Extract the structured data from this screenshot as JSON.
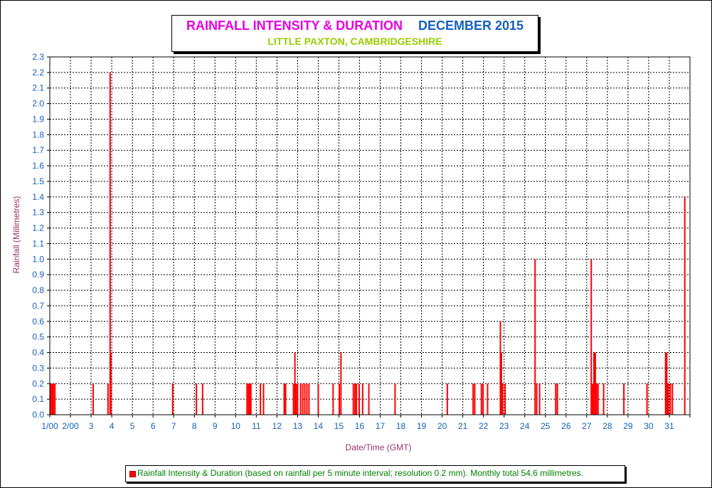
{
  "title": {
    "main": "RAINFALL INTENSITY & DURATION",
    "date": "DECEMBER 2015",
    "subtitle": "LITTLE PAXTON, CAMBRIDGESHIRE"
  },
  "legend": {
    "text": "Rainfall Intensity & Duration (based on rainfall per 5 minute interval; resolution 0.2 mm). Monthly total 54.6 millimetres."
  },
  "colors": {
    "bar": "#ff0000",
    "title_main": "#e600e6",
    "title_date": "#1560bd",
    "subtitle": "#99cc00",
    "axis_labels": "#993366",
    "tick_labels": "#1560bd",
    "legend_text": "#008000"
  },
  "chart_data": {
    "type": "bar",
    "title": "RAINFALL INTENSITY & DURATION",
    "subtitle": "LITTLE PAXTON, CAMBRIDGESHIRE",
    "xlabel": "Date/Time (GMT)",
    "ylabel": "Rainfall (Millimetres)",
    "xlim": [
      1,
      32
    ],
    "ylim": [
      0,
      2.3
    ],
    "grid": true,
    "legend_position": "bottom",
    "x_ticks": [
      1,
      2,
      3,
      4,
      5,
      6,
      7,
      8,
      9,
      10,
      11,
      12,
      13,
      14,
      15,
      16,
      17,
      18,
      19,
      20,
      21,
      22,
      23,
      24,
      25,
      26,
      27,
      28,
      29,
      30,
      31,
      32
    ],
    "x_tick_labels": [
      "1/00",
      "2/00",
      "3",
      "4",
      "5",
      "6",
      "7",
      "8",
      "9",
      "10",
      "11",
      "12",
      "13",
      "14",
      "15",
      "16",
      "17",
      "18",
      "19",
      "20",
      "21",
      "22",
      "23",
      "24",
      "25",
      "26",
      "27",
      "28",
      "29",
      "30",
      "31",
      ""
    ],
    "y_ticks": [
      0.0,
      0.1,
      0.2,
      0.3,
      0.4,
      0.5,
      0.6,
      0.7,
      0.8,
      0.9,
      1.0,
      1.1,
      1.2,
      1.3,
      1.4,
      1.5,
      1.6,
      1.7,
      1.8,
      1.9,
      2.0,
      2.1,
      2.2,
      2.3
    ],
    "y_tick_labels": [
      "0.0",
      "0.1",
      "0.2",
      "0.3",
      "0.4",
      "0.5",
      "0.6",
      "0.7",
      "0.8",
      "0.9",
      "1.0",
      "1.1",
      "1.2",
      "1.3",
      "1.4",
      "1.5",
      "1.6",
      "1.7",
      "1.8",
      "1.9",
      "2.0",
      "2.1",
      "2.2",
      "2.3"
    ],
    "series": [
      {
        "name": "Rainfall Intensity & Duration",
        "points": [
          [
            1.05,
            0.2
          ],
          [
            1.12,
            0.2
          ],
          [
            1.18,
            0.2
          ],
          [
            1.25,
            0.2
          ],
          [
            3.1,
            0.2
          ],
          [
            3.82,
            0.2
          ],
          [
            3.92,
            2.2
          ],
          [
            3.96,
            0.4
          ],
          [
            6.95,
            0.2
          ],
          [
            8.1,
            0.2
          ],
          [
            8.4,
            0.2
          ],
          [
            10.55,
            0.2
          ],
          [
            10.62,
            0.2
          ],
          [
            10.68,
            0.2
          ],
          [
            10.74,
            0.2
          ],
          [
            11.2,
            0.2
          ],
          [
            11.35,
            0.2
          ],
          [
            12.35,
            0.2
          ],
          [
            12.42,
            0.2
          ],
          [
            12.8,
            0.2
          ],
          [
            12.87,
            0.4
          ],
          [
            12.93,
            0.2
          ],
          [
            13.0,
            0.2
          ],
          [
            13.15,
            0.2
          ],
          [
            13.25,
            0.2
          ],
          [
            13.35,
            0.2
          ],
          [
            13.45,
            0.2
          ],
          [
            13.55,
            0.2
          ],
          [
            14.0,
            0.2
          ],
          [
            14.72,
            0.2
          ],
          [
            15.02,
            0.2
          ],
          [
            15.1,
            0.4
          ],
          [
            15.7,
            0.2
          ],
          [
            15.78,
            0.2
          ],
          [
            15.85,
            0.2
          ],
          [
            15.98,
            0.2
          ],
          [
            16.15,
            0.2
          ],
          [
            16.45,
            0.2
          ],
          [
            17.72,
            0.2
          ],
          [
            20.25,
            0.2
          ],
          [
            21.5,
            0.2
          ],
          [
            21.58,
            0.2
          ],
          [
            21.9,
            0.2
          ],
          [
            21.98,
            0.2
          ],
          [
            22.2,
            0.2
          ],
          [
            22.82,
            0.6
          ],
          [
            22.87,
            0.4
          ],
          [
            22.93,
            0.2
          ],
          [
            23.05,
            0.2
          ],
          [
            24.5,
            1.0
          ],
          [
            24.58,
            0.2
          ],
          [
            24.72,
            0.2
          ],
          [
            25.5,
            0.2
          ],
          [
            25.58,
            0.2
          ],
          [
            27.22,
            1.0
          ],
          [
            27.28,
            0.2
          ],
          [
            27.35,
            0.4
          ],
          [
            27.42,
            0.4
          ],
          [
            27.48,
            0.2
          ],
          [
            27.55,
            0.2
          ],
          [
            27.82,
            0.2
          ],
          [
            28.8,
            0.2
          ],
          [
            29.92,
            0.2
          ],
          [
            30.82,
            0.4
          ],
          [
            30.88,
            0.4
          ],
          [
            30.95,
            0.2
          ],
          [
            31.05,
            0.2
          ],
          [
            31.15,
            0.2
          ],
          [
            31.75,
            1.4
          ]
        ]
      }
    ]
  }
}
